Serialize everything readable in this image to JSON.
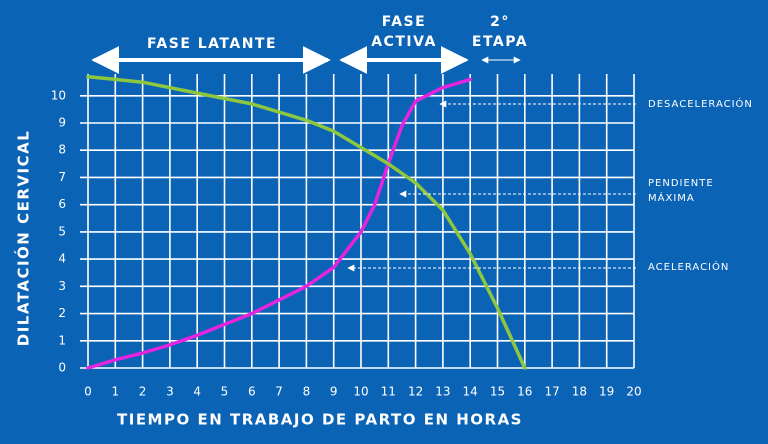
{
  "chart_data": {
    "type": "line",
    "xlabel": "TIEMPO EN TRABAJO DE PARTO EN HORAS",
    "ylabel": "DILATACIÓN CERVICAL",
    "xlim": [
      0,
      20
    ],
    "ylim": [
      0,
      10.8
    ],
    "xticks": [
      0,
      1,
      2,
      3,
      4,
      5,
      6,
      7,
      8,
      9,
      10,
      11,
      12,
      13,
      14,
      15,
      16,
      17,
      18,
      19,
      20
    ],
    "yticks": [
      0,
      1,
      2,
      3,
      4,
      5,
      6,
      7,
      8,
      9,
      10
    ],
    "grid": true,
    "series": [
      {
        "color": "#e524e0",
        "x": [
          0,
          1,
          2,
          3,
          4,
          5,
          6,
          7,
          8,
          9,
          10,
          10.5,
          11,
          11.5,
          12,
          13,
          14
        ],
        "values": [
          0,
          0.3,
          0.55,
          0.85,
          1.2,
          1.6,
          2.0,
          2.5,
          3.0,
          3.7,
          5.0,
          6.0,
          7.5,
          8.9,
          9.8,
          10.3,
          10.6
        ]
      },
      {
        "color": "#8dc63f",
        "x": [
          0,
          1,
          2,
          3,
          4,
          5,
          6,
          7,
          8,
          9,
          10,
          11,
          12,
          13,
          14,
          15,
          16
        ],
        "values": [
          10.7,
          10.6,
          10.5,
          10.3,
          10.1,
          9.9,
          9.7,
          9.4,
          9.1,
          8.7,
          8.1,
          7.5,
          6.8,
          5.8,
          4.2,
          2.2,
          0
        ]
      }
    ],
    "phases": [
      {
        "lines": [
          "FASE LATANTE"
        ]
      },
      {
        "lines": [
          "FASE",
          "ACTIVA"
        ]
      },
      {
        "lines": [
          "2°",
          "ETAPA"
        ]
      }
    ],
    "annotations": [
      {
        "lines": [
          "DESACELERACIÓN"
        ]
      },
      {
        "lines": [
          "PENDIENTE",
          "MÁXIMA"
        ]
      },
      {
        "lines": [
          "ACELERACIÓN"
        ]
      }
    ]
  }
}
